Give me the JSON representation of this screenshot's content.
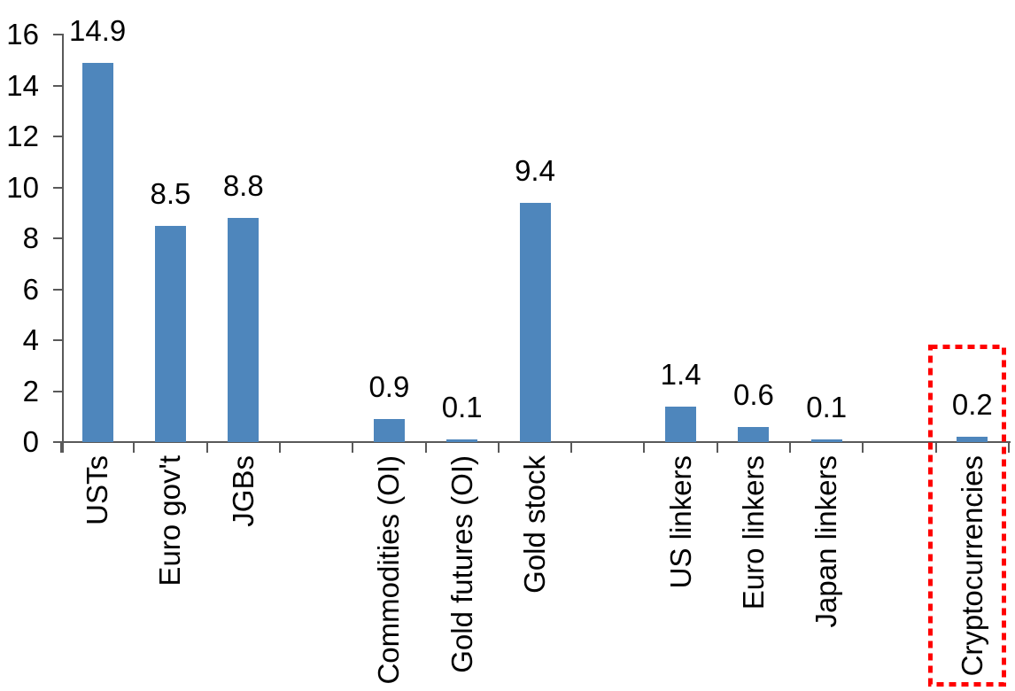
{
  "chart_data": {
    "type": "bar",
    "title": "",
    "categories": [
      "USTs",
      "Euro gov't",
      "JGBs",
      "",
      "Commodities (OI)",
      "Gold futures (OI)",
      "Gold stock",
      "",
      "US linkers",
      "Euro linkers",
      "Japan linkers",
      "",
      "Cryptocurrencies"
    ],
    "values": [
      14.9,
      8.5,
      8.8,
      null,
      0.9,
      0.1,
      9.4,
      null,
      1.4,
      0.6,
      0.1,
      null,
      0.2
    ],
    "data_labels": [
      "14.9",
      "8.5",
      "8.8",
      "",
      "0.9",
      "0.1",
      "9.4",
      "",
      "1.4",
      "0.6",
      "0.1",
      "",
      "0.2"
    ],
    "xlabel": "",
    "ylabel": "",
    "y_ticks": [
      0,
      2,
      4,
      6,
      8,
      10,
      12,
      14,
      16
    ],
    "ylim": [
      0,
      16
    ],
    "grid": "off",
    "legend": "none",
    "bar_color": "#4E86BC",
    "axis_color": "#595959",
    "text_color": "#000000",
    "highlight": {
      "category": "Cryptocurrencies",
      "box_color": "#FF0000",
      "box_style": "dotted"
    }
  }
}
